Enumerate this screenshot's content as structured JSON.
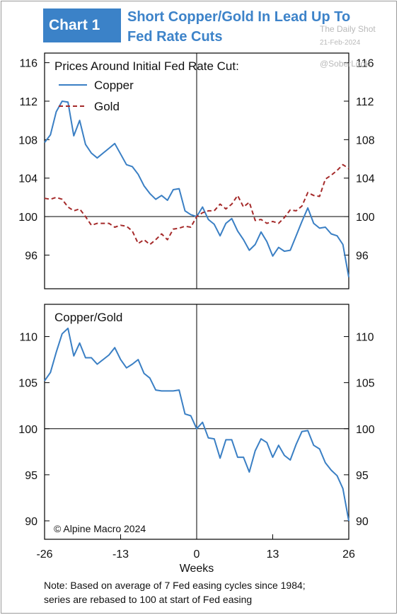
{
  "header": {
    "badge": "Chart 1",
    "title_line1": "Short Copper/Gold In Lead Up To",
    "title_line2": "Fed Rate Cuts"
  },
  "watermark": {
    "source": "The Daily Shot",
    "date": "21-Feb-2024",
    "handle": "@SoberLook"
  },
  "colors": {
    "copper": "#3a7fc4",
    "gold": "#a52a2a",
    "title": "#3d83c9",
    "badge_bg": "#3b82c8"
  },
  "copyright": "© Alpine Macro 2024",
  "note_line1": "Note: Based on average of 7 Fed easing cycles since 1984;",
  "note_line2": "series are rebased to 100 at start of Fed easing",
  "chart_data": [
    {
      "type": "line",
      "title": "Prices Around Initial Fed Rate Cut:",
      "xlim": [
        -26,
        26
      ],
      "ylim": [
        92.5,
        117
      ],
      "yticks": [
        96,
        100,
        104,
        108,
        112,
        116
      ],
      "grid": false,
      "legend_position": "top-left",
      "series": [
        {
          "name": "Copper",
          "style": "solid",
          "x": [
            -26,
            -25,
            -24,
            -23,
            -22,
            -21,
            -20,
            -19,
            -18,
            -17,
            -16,
            -15,
            -14,
            -13,
            -12,
            -11,
            -10,
            -9,
            -8,
            -7,
            -6,
            -5,
            -4,
            -3,
            -2,
            -1,
            0,
            1,
            2,
            3,
            4,
            5,
            6,
            7,
            8,
            9,
            10,
            11,
            12,
            13,
            14,
            15,
            16,
            17,
            18,
            19,
            20,
            21,
            22,
            23,
            24,
            25,
            26
          ],
          "values": [
            107.7,
            108.5,
            110.9,
            112.0,
            111.9,
            108.4,
            110.0,
            107.5,
            106.6,
            106.1,
            106.6,
            107.1,
            107.6,
            106.5,
            105.4,
            105.2,
            104.4,
            103.2,
            102.4,
            101.8,
            102.2,
            101.7,
            102.8,
            102.9,
            100.6,
            100.2,
            100.0,
            101.0,
            99.7,
            99.2,
            98.0,
            99.3,
            99.8,
            98.5,
            97.6,
            96.5,
            97.1,
            98.4,
            97.4,
            95.9,
            96.8,
            96.4,
            96.5,
            98.0,
            99.5,
            100.9,
            99.3,
            98.8,
            98.9,
            98.2,
            98.0,
            97.1,
            93.7
          ]
        },
        {
          "name": "Gold",
          "style": "dashed",
          "x": [
            -26,
            -25,
            -24,
            -23,
            -22,
            -21,
            -20,
            -19,
            -18,
            -17,
            -16,
            -15,
            -14,
            -13,
            -12,
            -11,
            -10,
            -9,
            -8,
            -7,
            -6,
            -5,
            -4,
            -3,
            -2,
            -1,
            0,
            1,
            2,
            3,
            4,
            5,
            6,
            7,
            8,
            9,
            10,
            11,
            12,
            13,
            14,
            15,
            16,
            17,
            18,
            19,
            20,
            21,
            22,
            23,
            24,
            25,
            26
          ],
          "values": [
            101.9,
            101.8,
            102.0,
            101.8,
            101.0,
            100.6,
            100.8,
            100.0,
            99.1,
            99.3,
            99.3,
            99.3,
            98.9,
            99.1,
            99.0,
            98.5,
            97.2,
            97.6,
            97.1,
            97.6,
            98.2,
            97.6,
            98.7,
            98.8,
            99.0,
            98.9,
            100.0,
            100.4,
            100.6,
            100.6,
            101.3,
            100.8,
            101.3,
            102.2,
            101.0,
            101.5,
            99.6,
            99.7,
            99.3,
            99.5,
            99.3,
            99.9,
            100.7,
            100.6,
            101.1,
            102.5,
            102.2,
            102.1,
            103.9,
            104.3,
            104.8,
            105.4,
            105.0
          ]
        }
      ]
    },
    {
      "type": "line",
      "title": "Copper/Gold",
      "xlabel": "Weeks",
      "xlim": [
        -26,
        26
      ],
      "xticks": [
        -26,
        -13,
        0,
        13,
        26
      ],
      "ylim": [
        88,
        113.5
      ],
      "yticks": [
        90,
        95,
        100,
        105,
        110
      ],
      "grid": false,
      "series": [
        {
          "style": "solid",
          "x": [
            -26,
            -25,
            -24,
            -23,
            -22,
            -21,
            -20,
            -19,
            -18,
            -17,
            -16,
            -15,
            -14,
            -13,
            -12,
            -11,
            -10,
            -9,
            -8,
            -7,
            -6,
            -5,
            -4,
            -3,
            -2,
            -1,
            0,
            1,
            2,
            3,
            4,
            5,
            6,
            7,
            8,
            9,
            10,
            11,
            12,
            13,
            14,
            15,
            16,
            17,
            18,
            19,
            20,
            21,
            22,
            23,
            24,
            25,
            26
          ],
          "values": [
            105.2,
            106.1,
            108.3,
            110.3,
            110.9,
            107.9,
            109.3,
            107.7,
            107.7,
            107.0,
            107.5,
            108.0,
            108.8,
            107.5,
            106.6,
            107.0,
            107.5,
            106.0,
            105.5,
            104.2,
            104.1,
            104.1,
            104.1,
            104.2,
            101.6,
            101.4,
            100.0,
            100.7,
            99.0,
            98.9,
            96.8,
            98.8,
            98.8,
            96.9,
            96.9,
            95.3,
            97.6,
            98.9,
            98.5,
            96.9,
            98.2,
            97.1,
            96.6,
            98.3,
            99.7,
            99.8,
            98.2,
            97.8,
            96.3,
            95.5,
            94.9,
            93.5,
            90.0
          ]
        }
      ]
    }
  ]
}
